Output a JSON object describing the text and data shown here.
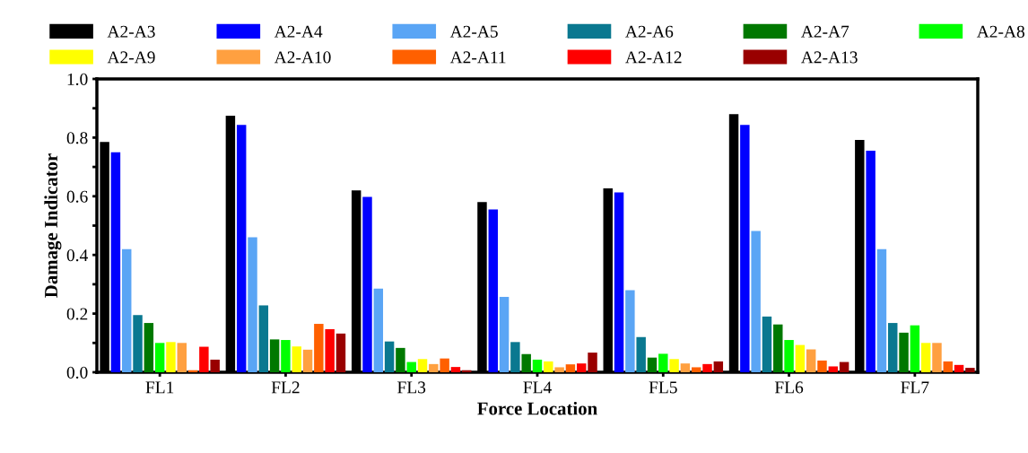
{
  "chart_data": {
    "type": "bar",
    "xlabel": "Force Location",
    "ylabel": "Damage Indicator",
    "categories": [
      "FL1",
      "FL2",
      "FL3",
      "FL4",
      "FL5",
      "FL6",
      "FL7"
    ],
    "ylim": [
      0,
      1.0
    ],
    "yticks": [
      {
        "value": 0,
        "label": "0.0"
      },
      {
        "value": 0.1,
        "label": null
      },
      {
        "value": 0.2,
        "label": "0.2"
      },
      {
        "value": 0.3,
        "label": null
      },
      {
        "value": 0.4,
        "label": "0.4"
      },
      {
        "value": 0.5,
        "label": null
      },
      {
        "value": 0.6,
        "label": "0.6"
      },
      {
        "value": 0.7,
        "label": null
      },
      {
        "value": 0.8,
        "label": "0.8"
      },
      {
        "value": 0.9,
        "label": null
      },
      {
        "value": 1.0,
        "label": "1.0"
      }
    ],
    "grid": false,
    "legend": "top",
    "series": [
      {
        "name": "A2-A3",
        "color": "#000000",
        "values": [
          0.785,
          0.875,
          0.62,
          0.58,
          0.627,
          0.88,
          0.792
        ]
      },
      {
        "name": "A2-A4",
        "color": "#0000ff",
        "values": [
          0.75,
          0.843,
          0.598,
          0.555,
          0.613,
          0.843,
          0.755
        ]
      },
      {
        "name": "A2-A5",
        "color": "#5aa5f5",
        "values": [
          0.42,
          0.46,
          0.285,
          0.257,
          0.28,
          0.482,
          0.42
        ]
      },
      {
        "name": "A2-A6",
        "color": "#0a7890",
        "values": [
          0.195,
          0.228,
          0.105,
          0.103,
          0.12,
          0.19,
          0.168
        ]
      },
      {
        "name": "A2-A7",
        "color": "#007800",
        "values": [
          0.168,
          0.112,
          0.083,
          0.062,
          0.05,
          0.163,
          0.135
        ]
      },
      {
        "name": "A2-A8",
        "color": "#00ff00",
        "values": [
          0.1,
          0.11,
          0.035,
          0.043,
          0.063,
          0.11,
          0.16
        ]
      },
      {
        "name": "A2-A9",
        "color": "#ffff00",
        "values": [
          0.103,
          0.088,
          0.045,
          0.037,
          0.045,
          0.093,
          0.1
        ]
      },
      {
        "name": "A2-A10",
        "color": "#ffa040",
        "values": [
          0.1,
          0.077,
          0.028,
          0.017,
          0.03,
          0.078,
          0.1
        ]
      },
      {
        "name": "A2-A11",
        "color": "#ff6000",
        "values": [
          0.007,
          0.165,
          0.047,
          0.027,
          0.017,
          0.04,
          0.037
        ]
      },
      {
        "name": "A2-A12",
        "color": "#ff0000",
        "values": [
          0.087,
          0.147,
          0.018,
          0.03,
          0.028,
          0.02,
          0.025
        ]
      },
      {
        "name": "A2-A13",
        "color": "#990000",
        "values": [
          0.043,
          0.132,
          0.007,
          0.067,
          0.037,
          0.035,
          0.015
        ]
      }
    ]
  }
}
